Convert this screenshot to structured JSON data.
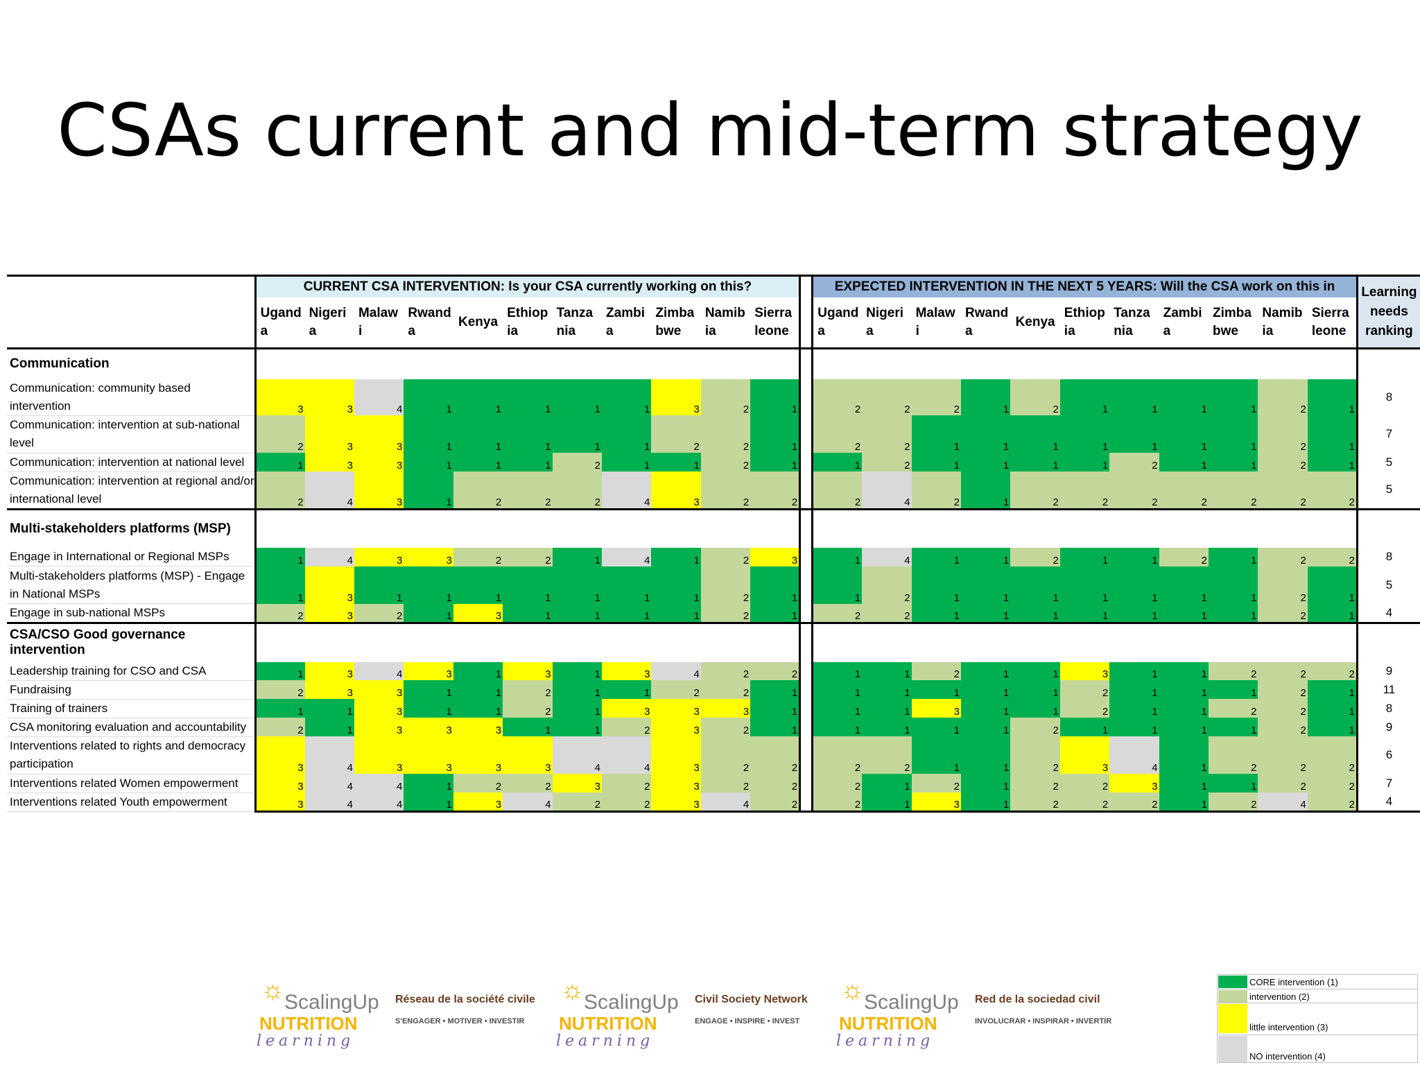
{
  "title": "CSAs current and mid-term strategy",
  "table": {
    "current_header": "CURRENT CSA INTERVENTION: Is your CSA currently working on this?",
    "expected_header": "EXPECTED INTERVENTION IN THE NEXT 5 YEARS: Will the CSA work on this in",
    "ranking_header": [
      "Learning",
      "needs",
      "ranking"
    ],
    "countries": [
      [
        "Ugand",
        "a"
      ],
      [
        "Nigeri",
        "a"
      ],
      [
        "Malaw",
        "i"
      ],
      [
        "Rwand",
        "a"
      ],
      [
        "Kenya",
        ""
      ],
      [
        "Ethiop",
        "ia"
      ],
      [
        "Tanza",
        "nia"
      ],
      [
        "Zambi",
        "a"
      ],
      [
        "Zimba",
        "bwe"
      ],
      [
        "Namib",
        "ia"
      ],
      [
        "Sierra",
        "leone"
      ]
    ],
    "sections": [
      {
        "name": "Communication",
        "rows": [
          {
            "label": "Communication: community based intervention",
            "current": [
              3,
              3,
              4,
              1,
              1,
              1,
              1,
              1,
              3,
              2,
              1
            ],
            "expected": [
              2,
              2,
              2,
              1,
              2,
              1,
              1,
              1,
              1,
              2,
              1
            ],
            "rank": "8"
          },
          {
            "label": "Communication: intervention at sub-national level",
            "current": [
              2,
              3,
              3,
              1,
              1,
              1,
              1,
              1,
              2,
              2,
              1
            ],
            "expected": [
              2,
              2,
              1,
              1,
              1,
              1,
              1,
              1,
              1,
              2,
              1
            ],
            "rank": "7"
          },
          {
            "label": "Communication: intervention at national level",
            "current": [
              1,
              3,
              3,
              1,
              1,
              1,
              2,
              1,
              1,
              2,
              1
            ],
            "expected": [
              1,
              2,
              1,
              1,
              1,
              1,
              2,
              1,
              1,
              2,
              1
            ],
            "rank": "5"
          },
          {
            "label": "Communication: intervention at regional and/or international level",
            "current": [
              2,
              4,
              3,
              1,
              2,
              2,
              2,
              4,
              3,
              2,
              2
            ],
            "expected": [
              2,
              4,
              2,
              1,
              2,
              2,
              2,
              2,
              2,
              2,
              2
            ],
            "rank": "5"
          }
        ]
      },
      {
        "name": "Multi-stakeholders platforms (MSP)",
        "rows": [
          {
            "label": "Engage in International or Regional MSPs",
            "current": [
              1,
              4,
              3,
              3,
              2,
              2,
              1,
              4,
              1,
              2,
              3
            ],
            "expected": [
              1,
              4,
              1,
              1,
              2,
              1,
              1,
              2,
              1,
              2,
              2
            ],
            "rank": "8"
          },
          {
            "label": "Multi-stakeholders platforms (MSP) - Engage in National MSPs",
            "current": [
              1,
              3,
              1,
              1,
              1,
              1,
              1,
              1,
              1,
              2,
              1
            ],
            "expected": [
              1,
              2,
              1,
              1,
              1,
              1,
              1,
              1,
              1,
              2,
              1
            ],
            "rank": "5"
          },
          {
            "label": "Engage in sub-national MSPs",
            "current": [
              2,
              3,
              2,
              1,
              3,
              1,
              1,
              1,
              1,
              2,
              1
            ],
            "expected": [
              2,
              2,
              1,
              1,
              1,
              1,
              1,
              1,
              1,
              2,
              1
            ],
            "rank": "4"
          }
        ]
      },
      {
        "name": "CSA/CSO Good governance intervention",
        "rows": [
          {
            "label": "Leadership training for CSO and CSA",
            "current": [
              1,
              3,
              4,
              3,
              1,
              3,
              1,
              3,
              4,
              2,
              2
            ],
            "expected": [
              1,
              1,
              2,
              1,
              1,
              3,
              1,
              1,
              2,
              2,
              2
            ],
            "rank": "9"
          },
          {
            "label": "Fundraising",
            "current": [
              2,
              3,
              3,
              1,
              1,
              2,
              1,
              1,
              2,
              2,
              1
            ],
            "expected": [
              1,
              1,
              1,
              1,
              1,
              2,
              1,
              1,
              1,
              2,
              1
            ],
            "rank": "11"
          },
          {
            "label": "Training of trainers",
            "current": [
              1,
              1,
              3,
              1,
              1,
              2,
              1,
              3,
              3,
              3,
              1
            ],
            "expected": [
              1,
              1,
              3,
              1,
              1,
              2,
              1,
              1,
              2,
              2,
              1
            ],
            "rank": "8"
          },
          {
            "label": "CSA monitoring evaluation and accountability",
            "current": [
              2,
              1,
              3,
              3,
              3,
              1,
              1,
              2,
              3,
              2,
              1
            ],
            "expected": [
              1,
              1,
              1,
              1,
              2,
              1,
              1,
              1,
              1,
              2,
              1
            ],
            "rank": "9"
          },
          {
            "label": "Interventions related to rights and democracy participation",
            "current": [
              3,
              4,
              3,
              3,
              3,
              3,
              4,
              4,
              3,
              2,
              2
            ],
            "expected": [
              2,
              2,
              1,
              1,
              2,
              3,
              4,
              1,
              2,
              2,
              2
            ],
            "rank": "6"
          },
          {
            "label": "Interventions related Women empowerment",
            "current": [
              3,
              4,
              4,
              1,
              2,
              2,
              3,
              2,
              3,
              2,
              2
            ],
            "expected": [
              2,
              1,
              2,
              1,
              2,
              2,
              3,
              1,
              1,
              2,
              2
            ],
            "rank": "7"
          },
          {
            "label": "Interventions related Youth empowerment",
            "current": [
              3,
              4,
              4,
              1,
              3,
              4,
              2,
              2,
              3,
              4,
              2
            ],
            "expected": [
              2,
              1,
              3,
              1,
              2,
              2,
              2,
              1,
              2,
              4,
              2
            ],
            "rank": "4"
          }
        ]
      }
    ]
  },
  "legend": [
    {
      "label": "CORE intervention (1)",
      "color": "#00b050"
    },
    {
      "label": "intervention (2)",
      "color": "#c4d79b"
    },
    {
      "label": "little intervention (3)",
      "color": "#ffff00"
    },
    {
      "label": "NO intervention (4)",
      "color": "#d9d9d9"
    }
  ],
  "logos": [
    {
      "brand": "ScalingUp",
      "brand2": "NUTRITION",
      "network": "Réseau de la société civile",
      "tagline": "S'ENGAGER • MOTIVER • INVESTIR",
      "learning": "learning"
    },
    {
      "brand": "ScalingUp",
      "brand2": "NUTRITION",
      "network": "Civil Society Network",
      "tagline": "ENGAGE • INSPIRE • INVEST",
      "learning": "learning"
    },
    {
      "brand": "ScalingUp",
      "brand2": "NUTRITION",
      "network": "Red de la sociedad civil",
      "tagline": "INVOLUCRAR • INSPIRAR • INVERTIR",
      "learning": "learning"
    }
  ]
}
